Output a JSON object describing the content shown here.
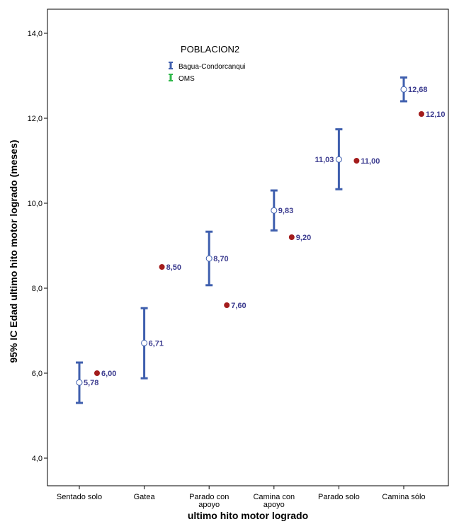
{
  "chart_data": {
    "type": "scatter",
    "xlabel": "ultimo hito motor logrado",
    "ylabel": "95% IC Edad ultimo hito motor logrado (meses)",
    "categories": [
      [
        "Sentado solo"
      ],
      [
        "Gatea"
      ],
      [
        "Parado con",
        "apoyo"
      ],
      [
        "Camina con",
        "apoyo"
      ],
      [
        "Parado solo"
      ],
      [
        "Camina sólo"
      ]
    ],
    "yticks": [
      "4,0",
      "6,0",
      "8,0",
      "10,0",
      "12,0",
      "14,0"
    ],
    "ylim": [
      3.5,
      15
    ],
    "legend": {
      "title": "POBLACION2",
      "placement": "top-center",
      "entries": [
        "Bagua-Condorcanqui",
        "OMS"
      ]
    },
    "series": [
      {
        "name": "Bagua-Condorcanqui",
        "color": "#3f5fae",
        "marker": "open-circle",
        "values": [
          5.78,
          6.71,
          8.7,
          9.83,
          11.03,
          12.68
        ],
        "ci_low": [
          5.3,
          5.88,
          8.07,
          9.36,
          10.33,
          12.4
        ],
        "ci_high": [
          6.25,
          7.53,
          9.33,
          10.3,
          11.74,
          12.96
        ],
        "labels": [
          "5,78",
          "6,71",
          "8,70",
          "9,83",
          "11,03",
          "12,68"
        ],
        "label_side": [
          "right",
          "right",
          "right",
          "right",
          "left",
          "right"
        ]
      },
      {
        "name": "OMS",
        "color": "#a31c1c",
        "legend_color": "#2fb84a",
        "marker": "filled-circle",
        "values": [
          6.0,
          8.5,
          7.6,
          9.2,
          11.0,
          12.1
        ],
        "labels": [
          "6,00",
          "8,50",
          "7,60",
          "9,20",
          "11,00",
          "12,10"
        ]
      }
    ],
    "label_color": "#3b3b8f",
    "grid": false
  }
}
